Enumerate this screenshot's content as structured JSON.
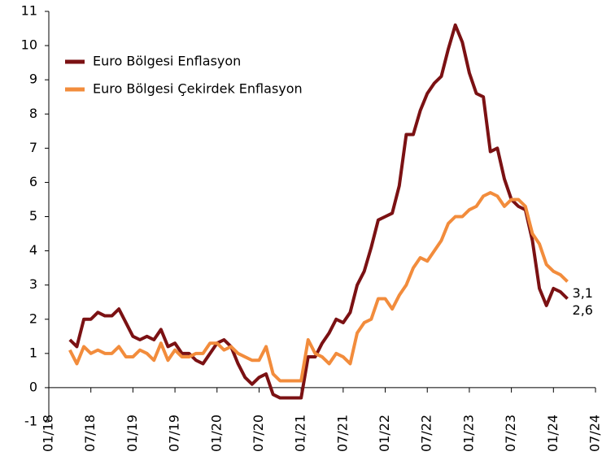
{
  "chart_data": {
    "type": "line",
    "x": [
      3,
      4,
      5,
      6,
      7,
      8,
      9,
      10,
      11,
      12,
      13,
      14,
      15,
      16,
      17,
      18,
      19,
      20,
      21,
      22,
      23,
      24,
      25,
      26,
      27,
      28,
      29,
      30,
      31,
      32,
      33,
      34,
      35,
      36,
      37,
      38,
      39,
      40,
      41,
      42,
      43,
      44,
      45,
      46,
      47,
      48,
      49,
      50,
      51,
      52,
      53,
      54,
      55,
      56,
      57,
      58,
      59,
      60,
      61,
      62,
      63,
      64,
      65,
      66,
      67,
      68,
      69,
      70,
      71,
      72,
      73,
      74
    ],
    "xlim": [
      0,
      78
    ],
    "xticks": [
      {
        "value": 0,
        "label": "01/18"
      },
      {
        "value": 6,
        "label": "07/18"
      },
      {
        "value": 12,
        "label": "01/19"
      },
      {
        "value": 18,
        "label": "07/19"
      },
      {
        "value": 24,
        "label": "01/20"
      },
      {
        "value": 30,
        "label": "07/20"
      },
      {
        "value": 36,
        "label": "01/21"
      },
      {
        "value": 42,
        "label": "07/21"
      },
      {
        "value": 48,
        "label": "01/22"
      },
      {
        "value": 54,
        "label": "07/22"
      },
      {
        "value": 60,
        "label": "01/23"
      },
      {
        "value": 66,
        "label": "07/23"
      },
      {
        "value": 72,
        "label": "01/24"
      },
      {
        "value": 78,
        "label": "07/24"
      }
    ],
    "ylim": [
      -1,
      11
    ],
    "yticks": [
      -1,
      0,
      1,
      2,
      3,
      4,
      5,
      6,
      7,
      8,
      9,
      10,
      11
    ],
    "legend": "upper left",
    "series": [
      {
        "name": "Euro Bölgesi Enflasyon",
        "color": "#7b1113",
        "values": [
          1.4,
          1.2,
          2.0,
          2.0,
          2.2,
          2.1,
          2.1,
          2.3,
          1.9,
          1.5,
          1.4,
          1.5,
          1.4,
          1.7,
          1.2,
          1.3,
          1.0,
          1.0,
          0.8,
          0.7,
          1.0,
          1.3,
          1.4,
          1.2,
          0.7,
          0.3,
          0.1,
          0.3,
          0.4,
          -0.2,
          -0.3,
          -0.3,
          -0.3,
          -0.3,
          0.9,
          0.9,
          1.3,
          1.6,
          2.0,
          1.9,
          2.2,
          3.0,
          3.4,
          4.1,
          4.9,
          5.0,
          5.1,
          5.9,
          7.4,
          7.4,
          8.1,
          8.6,
          8.9,
          9.1,
          9.9,
          10.6,
          10.1,
          9.2,
          8.6,
          8.5,
          6.9,
          7.0,
          6.1,
          5.5,
          5.3,
          5.2,
          4.3,
          2.9,
          2.4,
          2.9,
          2.8,
          2.6
        ],
        "value_labels": [
          null,
          null,
          null,
          null,
          null,
          null,
          null,
          null,
          null,
          null,
          null,
          null,
          null,
          null,
          null,
          null,
          null,
          null,
          null,
          null,
          null,
          null,
          null,
          null,
          null,
          null,
          null,
          null,
          null,
          null,
          null,
          null,
          null,
          null,
          null,
          null,
          null,
          null,
          null,
          null,
          null,
          null,
          null,
          null,
          null,
          null,
          null,
          null,
          null,
          null,
          null,
          null,
          null,
          null,
          null,
          null,
          null,
          null,
          null,
          null,
          null,
          null,
          null,
          null,
          null,
          null,
          null,
          null,
          null,
          null,
          null,
          "2,6"
        ]
      },
      {
        "name": "Euro Bölgesi Çekirdek Enflasyon",
        "color": "#f28c3c",
        "values": [
          1.1,
          0.7,
          1.2,
          1.0,
          1.1,
          1.0,
          1.0,
          1.2,
          0.9,
          0.9,
          1.1,
          1.0,
          0.8,
          1.3,
          0.8,
          1.1,
          0.9,
          0.9,
          1.0,
          1.0,
          1.3,
          1.3,
          1.1,
          1.2,
          1.0,
          0.9,
          0.8,
          0.8,
          1.2,
          0.4,
          0.2,
          0.2,
          0.2,
          0.2,
          1.4,
          1.0,
          0.9,
          0.7,
          1.0,
          0.9,
          0.7,
          1.6,
          1.9,
          2.0,
          2.6,
          2.6,
          2.3,
          2.7,
          3.0,
          3.5,
          3.8,
          3.7,
          4.0,
          4.3,
          4.8,
          5.0,
          5.0,
          5.2,
          5.3,
          5.6,
          5.7,
          5.6,
          5.3,
          5.5,
          5.5,
          5.3,
          4.5,
          4.2,
          3.6,
          3.4,
          3.3,
          3.1
        ],
        "value_labels": [
          null,
          null,
          null,
          null,
          null,
          null,
          null,
          null,
          null,
          null,
          null,
          null,
          null,
          null,
          null,
          null,
          null,
          null,
          null,
          null,
          null,
          null,
          null,
          null,
          null,
          null,
          null,
          null,
          null,
          null,
          null,
          null,
          null,
          null,
          null,
          null,
          null,
          null,
          null,
          null,
          null,
          null,
          null,
          null,
          null,
          null,
          null,
          null,
          null,
          null,
          null,
          null,
          null,
          null,
          null,
          null,
          null,
          null,
          null,
          null,
          null,
          null,
          null,
          null,
          null,
          null,
          null,
          null,
          null,
          null,
          null,
          "3,1"
        ]
      }
    ]
  }
}
